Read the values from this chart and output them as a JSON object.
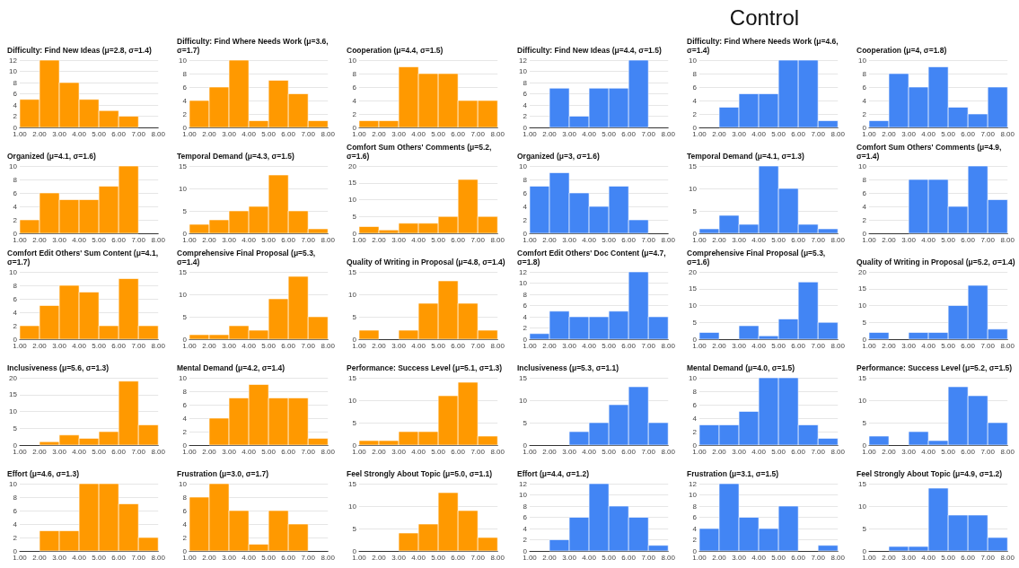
{
  "chart_data": [
    {
      "type": "histogram",
      "title": "Difficulty: Find New Ideas (μ=2.8, σ=1.4)",
      "bins": [
        1,
        2,
        3,
        4,
        5,
        6,
        7,
        8
      ],
      "values": [
        5,
        12,
        8,
        5,
        3,
        2,
        0
      ],
      "color": "#ff9900",
      "xlim": [
        1,
        8
      ],
      "xticks": [
        {
          "value": 1,
          "label": "1.00"
        },
        {
          "value": 2,
          "label": "2.00"
        },
        {
          "value": 3,
          "label": "3.00"
        },
        {
          "value": 4,
          "label": "4.00"
        },
        {
          "value": 5,
          "label": "5.00"
        },
        {
          "value": 6,
          "label": "6.00"
        },
        {
          "value": 7,
          "label": "7.00"
        },
        {
          "value": 8,
          "label": "8.00"
        }
      ],
      "ylim": [
        0,
        12
      ],
      "yticks": [
        0,
        2,
        4,
        6,
        8,
        10,
        12
      ],
      "grid": "y"
    },
    {
      "type": "histogram",
      "title": "Difficulty: Find Where Needs Work  (μ=3.6, σ=1.7)",
      "bins": [
        1,
        2,
        3,
        4,
        5,
        6,
        7,
        8
      ],
      "values": [
        4,
        6,
        10,
        1,
        7,
        5,
        1
      ],
      "color": "#ff9900",
      "xlim": [
        1,
        8
      ],
      "xticks": [
        {
          "value": 1,
          "label": "1.00"
        },
        {
          "value": 2,
          "label": "2.00"
        },
        {
          "value": 3,
          "label": "3.00"
        },
        {
          "value": 4,
          "label": "4.00"
        },
        {
          "value": 5,
          "label": "5.00"
        },
        {
          "value": 6,
          "label": "6.00"
        },
        {
          "value": 7,
          "label": "7.00"
        },
        {
          "value": 8,
          "label": "8.00"
        }
      ],
      "ylim": [
        0,
        10
      ],
      "yticks": [
        0,
        2,
        4,
        6,
        8,
        10
      ],
      "grid": "y"
    },
    {
      "type": "histogram",
      "title": "Cooperation (μ=4.4, σ=1.5)",
      "bins": [
        1,
        2,
        3,
        4,
        5,
        6,
        7,
        8
      ],
      "values": [
        1,
        1,
        9,
        8,
        8,
        4,
        4
      ],
      "color": "#ff9900",
      "xlim": [
        1,
        8
      ],
      "xticks": [
        {
          "value": 1,
          "label": "1.00"
        },
        {
          "value": 2,
          "label": "2.00"
        },
        {
          "value": 3,
          "label": "3.00"
        },
        {
          "value": 4,
          "label": "4.00"
        },
        {
          "value": 5,
          "label": "5.00"
        },
        {
          "value": 6,
          "label": "6.00"
        },
        {
          "value": 7,
          "label": "7.00"
        },
        {
          "value": 8,
          "label": "8.00"
        }
      ],
      "ylim": [
        0,
        10
      ],
      "yticks": [
        0,
        2,
        4,
        6,
        8,
        10
      ],
      "grid": "y"
    },
    {
      "type": "histogram",
      "title": "Organized  (μ=4.1, σ=1.6)",
      "bins": [
        1,
        2,
        3,
        4,
        5,
        6,
        7,
        8
      ],
      "values": [
        2,
        6,
        5,
        5,
        7,
        10,
        0
      ],
      "color": "#ff9900",
      "xlim": [
        1,
        8
      ],
      "xticks": [
        {
          "value": 1,
          "label": "1.00"
        },
        {
          "value": 2,
          "label": "2.00"
        },
        {
          "value": 3,
          "label": "3.00"
        },
        {
          "value": 4,
          "label": "4.00"
        },
        {
          "value": 5,
          "label": "5.00"
        },
        {
          "value": 6,
          "label": "6.00"
        },
        {
          "value": 7,
          "label": "7.00"
        },
        {
          "value": 8,
          "label": "8.00"
        }
      ],
      "ylim": [
        0,
        10
      ],
      "yticks": [
        0,
        2,
        4,
        6,
        8,
        10
      ],
      "grid": "y"
    },
    {
      "type": "histogram",
      "title": "Temporal Demand (μ=4.3, σ=1.5)",
      "bins": [
        1,
        2,
        3,
        4,
        5,
        6,
        7,
        8
      ],
      "values": [
        2,
        3,
        5,
        6,
        13,
        5,
        1
      ],
      "color": "#ff9900",
      "xlim": [
        1,
        8
      ],
      "xticks": [
        {
          "value": 1,
          "label": "1.00"
        },
        {
          "value": 2,
          "label": "2.00"
        },
        {
          "value": 3,
          "label": "3.00"
        },
        {
          "value": 4,
          "label": "4.00"
        },
        {
          "value": 5,
          "label": "5.00"
        },
        {
          "value": 6,
          "label": "6.00"
        },
        {
          "value": 7,
          "label": "7.00"
        },
        {
          "value": 8,
          "label": "8.00"
        }
      ],
      "ylim": [
        0,
        15
      ],
      "yticks": [
        0,
        5,
        10,
        15
      ],
      "grid": "y"
    },
    {
      "type": "histogram",
      "title": "Comfort Sum Others' Comments (μ=5.2, σ=1.6)",
      "bins": [
        1,
        2,
        3,
        4,
        5,
        6,
        7,
        8
      ],
      "values": [
        2,
        1,
        3,
        3,
        5,
        16,
        5
      ],
      "color": "#ff9900",
      "xlim": [
        1,
        8
      ],
      "xticks": [
        {
          "value": 1,
          "label": "1.00"
        },
        {
          "value": 2,
          "label": "2.00"
        },
        {
          "value": 3,
          "label": "3.00"
        },
        {
          "value": 4,
          "label": "4.00"
        },
        {
          "value": 5,
          "label": "5.00"
        },
        {
          "value": 6,
          "label": "6.00"
        },
        {
          "value": 7,
          "label": "7.00"
        },
        {
          "value": 8,
          "label": "8.00"
        }
      ],
      "ylim": [
        0,
        20
      ],
      "yticks": [
        0,
        5,
        10,
        15,
        20
      ],
      "grid": "y"
    },
    {
      "type": "histogram",
      "title": "Comfort Edit Others' Sum Content (μ=4.1, σ=1.7)",
      "bins": [
        1,
        2,
        3,
        4,
        5,
        6,
        7,
        8
      ],
      "values": [
        2,
        5,
        8,
        7,
        2,
        9,
        2
      ],
      "color": "#ff9900",
      "xlim": [
        1,
        8
      ],
      "xticks": [
        {
          "value": 1,
          "label": "1.00"
        },
        {
          "value": 2,
          "label": "2.00"
        },
        {
          "value": 3,
          "label": "3.00"
        },
        {
          "value": 4,
          "label": "4.00"
        },
        {
          "value": 5,
          "label": "5.00"
        },
        {
          "value": 6,
          "label": "6.00"
        },
        {
          "value": 7,
          "label": "7.00"
        },
        {
          "value": 8,
          "label": "8.00"
        }
      ],
      "ylim": [
        0,
        10
      ],
      "yticks": [
        0,
        2,
        4,
        6,
        8,
        10
      ],
      "grid": "y"
    },
    {
      "type": "histogram",
      "title": "Comprehensive Final Proposal (μ=5.3, σ=1.4)",
      "bins": [
        1,
        2,
        3,
        4,
        5,
        6,
        7,
        8
      ],
      "values": [
        1,
        1,
        3,
        2,
        9,
        14,
        5
      ],
      "color": "#ff9900",
      "xlim": [
        1,
        8
      ],
      "xticks": [
        {
          "value": 1,
          "label": "1.00"
        },
        {
          "value": 2,
          "label": "2.00"
        },
        {
          "value": 3,
          "label": "3.00"
        },
        {
          "value": 4,
          "label": "4.00"
        },
        {
          "value": 5,
          "label": "5.00"
        },
        {
          "value": 6,
          "label": "6.00"
        },
        {
          "value": 7,
          "label": "7.00"
        },
        {
          "value": 8,
          "label": "8.00"
        }
      ],
      "ylim": [
        0,
        15
      ],
      "yticks": [
        0,
        5,
        10,
        15
      ],
      "grid": "y"
    },
    {
      "type": "histogram",
      "title": "Quality of Writing in Proposal (μ=4.8, σ=1.4)",
      "bins": [
        1,
        2,
        3,
        4,
        5,
        6,
        7,
        8
      ],
      "values": [
        2,
        0,
        2,
        8,
        13,
        8,
        2
      ],
      "color": "#ff9900",
      "xlim": [
        1,
        8
      ],
      "xticks": [
        {
          "value": 1,
          "label": "1.00"
        },
        {
          "value": 2,
          "label": "2.00"
        },
        {
          "value": 3,
          "label": "3.00"
        },
        {
          "value": 4,
          "label": "4.00"
        },
        {
          "value": 5,
          "label": "5.00"
        },
        {
          "value": 6,
          "label": "6.00"
        },
        {
          "value": 7,
          "label": "7.00"
        },
        {
          "value": 8,
          "label": "8.00"
        }
      ],
      "ylim": [
        0,
        15
      ],
      "yticks": [
        0,
        5,
        10,
        15
      ],
      "grid": "y"
    },
    {
      "type": "histogram",
      "title": "Inclusiveness (μ=5.6, σ=1.3)",
      "bins": [
        1,
        2,
        3,
        4,
        5,
        6,
        7,
        8
      ],
      "values": [
        0,
        1,
        3,
        2,
        4,
        19,
        6
      ],
      "color": "#ff9900",
      "xlim": [
        1,
        8
      ],
      "xticks": [
        {
          "value": 1,
          "label": "1.00"
        },
        {
          "value": 2,
          "label": "2.00"
        },
        {
          "value": 3,
          "label": "3.00"
        },
        {
          "value": 4,
          "label": "4.00"
        },
        {
          "value": 5,
          "label": "5.00"
        },
        {
          "value": 6,
          "label": "6.00"
        },
        {
          "value": 7,
          "label": "7.00"
        },
        {
          "value": 8,
          "label": "8.00"
        }
      ],
      "ylim": [
        0,
        20
      ],
      "yticks": [
        0,
        5,
        10,
        15,
        20
      ],
      "grid": "y"
    },
    {
      "type": "histogram",
      "title": "Mental Demand (μ=4.2, σ=1.4)",
      "bins": [
        1,
        2,
        3,
        4,
        5,
        6,
        7,
        8
      ],
      "values": [
        0,
        4,
        7,
        9,
        7,
        7,
        1
      ],
      "color": "#ff9900",
      "xlim": [
        1,
        8
      ],
      "xticks": [
        {
          "value": 1,
          "label": "1.00"
        },
        {
          "value": 2,
          "label": "2.00"
        },
        {
          "value": 3,
          "label": "3.00"
        },
        {
          "value": 4,
          "label": "4.00"
        },
        {
          "value": 5,
          "label": "5.00"
        },
        {
          "value": 6,
          "label": "6.00"
        },
        {
          "value": 7,
          "label": "7.00"
        },
        {
          "value": 8,
          "label": "8.00"
        }
      ],
      "ylim": [
        0,
        10
      ],
      "yticks": [
        0,
        2,
        4,
        6,
        8,
        10
      ],
      "grid": "y"
    },
    {
      "type": "histogram",
      "title": "Performance: Success Level (μ=5.1, σ=1.3)",
      "bins": [
        1,
        2,
        3,
        4,
        5,
        6,
        7,
        8
      ],
      "values": [
        1,
        1,
        3,
        3,
        11,
        14,
        2
      ],
      "color": "#ff9900",
      "xlim": [
        1,
        8
      ],
      "xticks": [
        {
          "value": 1,
          "label": "1.00"
        },
        {
          "value": 2,
          "label": "2.00"
        },
        {
          "value": 3,
          "label": "3.00"
        },
        {
          "value": 4,
          "label": "4.00"
        },
        {
          "value": 5,
          "label": "5.00"
        },
        {
          "value": 6,
          "label": "6.00"
        },
        {
          "value": 7,
          "label": "7.00"
        },
        {
          "value": 8,
          "label": "8.00"
        }
      ],
      "ylim": [
        0,
        15
      ],
      "yticks": [
        0,
        5,
        10,
        15
      ],
      "grid": "y"
    },
    {
      "type": "histogram",
      "title": "Effort (μ=4.6, σ=1.3)",
      "bins": [
        1,
        2,
        3,
        4,
        5,
        6,
        7,
        8
      ],
      "values": [
        0,
        3,
        3,
        10,
        10,
        7,
        2
      ],
      "color": "#ff9900",
      "xlim": [
        1,
        8
      ],
      "xticks": [
        {
          "value": 1,
          "label": "1.00"
        },
        {
          "value": 2,
          "label": "2.00"
        },
        {
          "value": 3,
          "label": "3.00"
        },
        {
          "value": 4,
          "label": "4.00"
        },
        {
          "value": 5,
          "label": "5.00"
        },
        {
          "value": 6,
          "label": "6.00"
        },
        {
          "value": 7,
          "label": "7.00"
        },
        {
          "value": 8,
          "label": "8.00"
        }
      ],
      "ylim": [
        0,
        10
      ],
      "yticks": [
        0,
        2,
        4,
        6,
        8,
        10
      ],
      "grid": "y"
    },
    {
      "type": "histogram",
      "title": "Frustration (μ=3.0, σ=1.7)",
      "bins": [
        1,
        2,
        3,
        4,
        5,
        6,
        7,
        8
      ],
      "values": [
        8,
        10,
        6,
        1,
        6,
        4,
        0
      ],
      "color": "#ff9900",
      "xlim": [
        1,
        8
      ],
      "xticks": [
        {
          "value": 1,
          "label": "1.00"
        },
        {
          "value": 2,
          "label": "2.00"
        },
        {
          "value": 3,
          "label": "3.00"
        },
        {
          "value": 4,
          "label": "4.00"
        },
        {
          "value": 5,
          "label": "5.00"
        },
        {
          "value": 6,
          "label": "6.00"
        },
        {
          "value": 7,
          "label": "7.00"
        },
        {
          "value": 8,
          "label": "8.00"
        }
      ],
      "ylim": [
        0,
        10
      ],
      "yticks": [
        0,
        2,
        4,
        6,
        8,
        10
      ],
      "grid": "y"
    },
    {
      "type": "histogram",
      "title": "Feel Strongly About Topic (μ=5.0, σ=1.1)",
      "bins": [
        1,
        2,
        3,
        4,
        5,
        6,
        7,
        8
      ],
      "values": [
        0,
        0,
        4,
        6,
        13,
        9,
        3
      ],
      "color": "#ff9900",
      "xlim": [
        1,
        8
      ],
      "xticks": [
        {
          "value": 1,
          "label": "1.00"
        },
        {
          "value": 2,
          "label": "2.00"
        },
        {
          "value": 3,
          "label": "3.00"
        },
        {
          "value": 4,
          "label": "4.00"
        },
        {
          "value": 5,
          "label": "5.00"
        },
        {
          "value": 6,
          "label": "6.00"
        },
        {
          "value": 7,
          "label": "7.00"
        },
        {
          "value": 8,
          "label": "8.00"
        }
      ],
      "ylim": [
        0,
        15
      ],
      "yticks": [
        0,
        5,
        10,
        15
      ],
      "grid": "y"
    },
    {
      "type": "histogram",
      "title": "Difficulty: Find New Ideas (μ=4.4, σ=1.5)",
      "annotations": [
        "Control"
      ],
      "bins": [
        1,
        2,
        3,
        4,
        5,
        6,
        7,
        8
      ],
      "values": [
        0,
        7,
        2,
        7,
        7,
        12,
        0
      ],
      "color": "#4285f4",
      "xlim": [
        1,
        8
      ],
      "xticks": [
        {
          "value": 1,
          "label": "1.00"
        },
        {
          "value": 2,
          "label": "2.00"
        },
        {
          "value": 3,
          "label": "3.00"
        },
        {
          "value": 4,
          "label": "4.00"
        },
        {
          "value": 5,
          "label": "5.00"
        },
        {
          "value": 6,
          "label": "6.00"
        },
        {
          "value": 7,
          "label": "7.00"
        },
        {
          "value": 8,
          "label": "8.00"
        }
      ],
      "ylim": [
        0,
        12
      ],
      "yticks": [
        0,
        2,
        4,
        6,
        8,
        10,
        12
      ],
      "grid": "y"
    },
    {
      "type": "histogram",
      "title": "Difficulty: Find Where Needs Work (μ=4.6, σ=1.4)",
      "bins": [
        1,
        2,
        3,
        4,
        5,
        6,
        7,
        8
      ],
      "values": [
        0,
        3,
        5,
        5,
        10,
        10,
        1
      ],
      "color": "#4285f4",
      "xlim": [
        1,
        8
      ],
      "xticks": [
        {
          "value": 1,
          "label": "1.00"
        },
        {
          "value": 2,
          "label": "2.00"
        },
        {
          "value": 3,
          "label": "3.00"
        },
        {
          "value": 4,
          "label": "4.00"
        },
        {
          "value": 5,
          "label": "5.00"
        },
        {
          "value": 6,
          "label": "6.00"
        },
        {
          "value": 7,
          "label": "7.00"
        },
        {
          "value": 8,
          "label": "8.00"
        }
      ],
      "ylim": [
        0,
        10
      ],
      "yticks": [
        0,
        2,
        4,
        6,
        8,
        10
      ],
      "grid": "y"
    },
    {
      "type": "histogram",
      "title": "Cooperation (μ=4, σ=1.8)",
      "bins": [
        1,
        2,
        3,
        4,
        5,
        6,
        7,
        8
      ],
      "values": [
        1,
        8,
        6,
        9,
        3,
        2,
        6
      ],
      "color": "#4285f4",
      "xlim": [
        1,
        8
      ],
      "xticks": [
        {
          "value": 1,
          "label": "1.00"
        },
        {
          "value": 2,
          "label": "2.00"
        },
        {
          "value": 3,
          "label": "3.00"
        },
        {
          "value": 4,
          "label": "4.00"
        },
        {
          "value": 5,
          "label": "5.00"
        },
        {
          "value": 6,
          "label": "6.00"
        },
        {
          "value": 7,
          "label": "7.00"
        },
        {
          "value": 8,
          "label": "8.00"
        }
      ],
      "ylim": [
        0,
        10
      ],
      "yticks": [
        0,
        2,
        4,
        6,
        8,
        10
      ],
      "grid": "y"
    },
    {
      "type": "histogram",
      "title": "Organized  (μ=3, σ=1.6)",
      "bins": [
        1,
        2,
        3,
        4,
        5,
        6,
        7,
        8
      ],
      "values": [
        7,
        9,
        6,
        4,
        7,
        2,
        0
      ],
      "color": "#4285f4",
      "xlim": [
        1,
        8
      ],
      "xticks": [
        {
          "value": 1,
          "label": "1.00"
        },
        {
          "value": 2,
          "label": "2.00"
        },
        {
          "value": 3,
          "label": "3.00"
        },
        {
          "value": 4,
          "label": "4.00"
        },
        {
          "value": 5,
          "label": "5.00"
        },
        {
          "value": 6,
          "label": "6.00"
        },
        {
          "value": 7,
          "label": "7.00"
        },
        {
          "value": 8,
          "label": "8.00"
        }
      ],
      "ylim": [
        0,
        10
      ],
      "yticks": [
        0,
        2,
        4,
        6,
        8,
        10
      ],
      "grid": "y"
    },
    {
      "type": "histogram",
      "title": "Temporal Demand (μ=4.1, σ=1.3)",
      "bins": [
        1,
        2,
        3,
        4,
        5,
        6,
        7,
        8
      ],
      "values": [
        1,
        4,
        2,
        15,
        10,
        2,
        1
      ],
      "color": "#4285f4",
      "xlim": [
        1,
        8
      ],
      "xticks": [
        {
          "value": 1,
          "label": "1.00"
        },
        {
          "value": 2,
          "label": "2.00"
        },
        {
          "value": 3,
          "label": "3.00"
        },
        {
          "value": 4,
          "label": "4.00"
        },
        {
          "value": 5,
          "label": "5.00"
        },
        {
          "value": 6,
          "label": "6.00"
        },
        {
          "value": 7,
          "label": "7.00"
        },
        {
          "value": 8,
          "label": "8.00"
        }
      ],
      "ylim": [
        0,
        15
      ],
      "yticks": [
        0,
        5,
        10,
        15
      ],
      "grid": "y"
    },
    {
      "type": "histogram",
      "title": "Comfort Sum Others' Comments (μ=4.9, σ=1.4)",
      "bins": [
        1,
        2,
        3,
        4,
        5,
        6,
        7,
        8
      ],
      "values": [
        0,
        0,
        8,
        8,
        4,
        10,
        5
      ],
      "color": "#4285f4",
      "xlim": [
        1,
        8
      ],
      "xticks": [
        {
          "value": 1,
          "label": "1.00"
        },
        {
          "value": 2,
          "label": "2.00"
        },
        {
          "value": 3,
          "label": "3.00"
        },
        {
          "value": 4,
          "label": "4.00"
        },
        {
          "value": 5,
          "label": "5.00"
        },
        {
          "value": 6,
          "label": "6.00"
        },
        {
          "value": 7,
          "label": "7.00"
        },
        {
          "value": 8,
          "label": "8.00"
        }
      ],
      "ylim": [
        0,
        10
      ],
      "yticks": [
        0,
        2,
        4,
        6,
        8,
        10
      ],
      "grid": "y"
    },
    {
      "type": "histogram",
      "title": "Comfort Edit Others' Doc Content (μ=4.7, σ=1.8)",
      "bins": [
        1,
        2,
        3,
        4,
        5,
        6,
        7,
        8
      ],
      "values": [
        1,
        5,
        4,
        4,
        5,
        12,
        4
      ],
      "color": "#4285f4",
      "xlim": [
        1,
        8
      ],
      "xticks": [
        {
          "value": 1,
          "label": "1.00"
        },
        {
          "value": 2,
          "label": "2.00"
        },
        {
          "value": 3,
          "label": "3.00"
        },
        {
          "value": 4,
          "label": "4.00"
        },
        {
          "value": 5,
          "label": "5.00"
        },
        {
          "value": 6,
          "label": "6.00"
        },
        {
          "value": 7,
          "label": "7.00"
        },
        {
          "value": 8,
          "label": "8.00"
        }
      ],
      "ylim": [
        0,
        12
      ],
      "yticks": [
        0,
        2,
        4,
        6,
        8,
        10,
        12
      ],
      "grid": "y"
    },
    {
      "type": "histogram",
      "title": "Comprehensive Final Proposal (μ=5.3, σ=1.6)",
      "bins": [
        1,
        2,
        3,
        4,
        5,
        6,
        7,
        8
      ],
      "values": [
        2,
        0,
        4,
        1,
        6,
        17,
        5
      ],
      "color": "#4285f4",
      "xlim": [
        1,
        8
      ],
      "xticks": [
        {
          "value": 1,
          "label": "1.00"
        },
        {
          "value": 2,
          "label": "2.00"
        },
        {
          "value": 3,
          "label": "3.00"
        },
        {
          "value": 4,
          "label": "4.00"
        },
        {
          "value": 5,
          "label": "5.00"
        },
        {
          "value": 6,
          "label": "6.00"
        },
        {
          "value": 7,
          "label": "7.00"
        },
        {
          "value": 8,
          "label": "8.00"
        }
      ],
      "ylim": [
        0,
        20
      ],
      "yticks": [
        0,
        5,
        10,
        15,
        20
      ],
      "grid": "y"
    },
    {
      "type": "histogram",
      "title": "Quality of Writing in Proposal (μ=5.2, σ=1.4)",
      "bins": [
        1,
        2,
        3,
        4,
        5,
        6,
        7,
        8
      ],
      "values": [
        2,
        0,
        2,
        2,
        10,
        16,
        3
      ],
      "color": "#4285f4",
      "xlim": [
        1,
        8
      ],
      "xticks": [
        {
          "value": 1,
          "label": "1.00"
        },
        {
          "value": 2,
          "label": "2.00"
        },
        {
          "value": 3,
          "label": "3.00"
        },
        {
          "value": 4,
          "label": "4.00"
        },
        {
          "value": 5,
          "label": "5.00"
        },
        {
          "value": 6,
          "label": "6.00"
        },
        {
          "value": 7,
          "label": "7.00"
        },
        {
          "value": 8,
          "label": "8.00"
        }
      ],
      "ylim": [
        0,
        20
      ],
      "yticks": [
        0,
        5,
        10,
        15,
        20
      ],
      "grid": "y"
    },
    {
      "type": "histogram",
      "title": "Inclusiveness (μ=5.3, σ=1.1)",
      "bins": [
        1,
        2,
        3,
        4,
        5,
        6,
        7,
        8
      ],
      "values": [
        0,
        0,
        3,
        5,
        9,
        13,
        5
      ],
      "color": "#4285f4",
      "xlim": [
        1,
        8
      ],
      "xticks": [
        {
          "value": 1,
          "label": "1.00"
        },
        {
          "value": 2,
          "label": "2.00"
        },
        {
          "value": 3,
          "label": "3.00"
        },
        {
          "value": 4,
          "label": "4.00"
        },
        {
          "value": 5,
          "label": "5.00"
        },
        {
          "value": 6,
          "label": "6.00"
        },
        {
          "value": 7,
          "label": "7.00"
        },
        {
          "value": 8,
          "label": "8.00"
        }
      ],
      "ylim": [
        0,
        15
      ],
      "yticks": [
        0,
        5,
        10,
        15
      ],
      "grid": "y"
    },
    {
      "type": "histogram",
      "title": "Mental Demand (μ=4.0, σ=1.5)",
      "bins": [
        1,
        2,
        3,
        4,
        5,
        6,
        7,
        8
      ],
      "values": [
        3,
        3,
        5,
        10,
        10,
        3,
        1
      ],
      "color": "#4285f4",
      "xlim": [
        1,
        8
      ],
      "xticks": [
        {
          "value": 1,
          "label": "1.00"
        },
        {
          "value": 2,
          "label": "2.00"
        },
        {
          "value": 3,
          "label": "3.00"
        },
        {
          "value": 4,
          "label": "4.00"
        },
        {
          "value": 5,
          "label": "5.00"
        },
        {
          "value": 6,
          "label": "6.00"
        },
        {
          "value": 7,
          "label": "7.00"
        },
        {
          "value": 8,
          "label": "8.00"
        }
      ],
      "ylim": [
        0,
        10
      ],
      "yticks": [
        0,
        2,
        4,
        6,
        8,
        10
      ],
      "grid": "y"
    },
    {
      "type": "histogram",
      "title": "Performance: Success Level (μ=5.2, σ=1.5)",
      "bins": [
        1,
        2,
        3,
        4,
        5,
        6,
        7,
        8
      ],
      "values": [
        2,
        0,
        3,
        1,
        13,
        11,
        5
      ],
      "color": "#4285f4",
      "xlim": [
        1,
        8
      ],
      "xticks": [
        {
          "value": 1,
          "label": "1.00"
        },
        {
          "value": 2,
          "label": "2.00"
        },
        {
          "value": 3,
          "label": "3.00"
        },
        {
          "value": 4,
          "label": "4.00"
        },
        {
          "value": 5,
          "label": "5.00"
        },
        {
          "value": 6,
          "label": "6.00"
        },
        {
          "value": 7,
          "label": "7.00"
        },
        {
          "value": 8,
          "label": "8.00"
        }
      ],
      "ylim": [
        0,
        15
      ],
      "yticks": [
        0,
        5,
        10,
        15
      ],
      "grid": "y"
    },
    {
      "type": "histogram",
      "title": "Effort (μ=4.4, σ=1.2)",
      "bins": [
        1,
        2,
        3,
        4,
        5,
        6,
        7,
        8
      ],
      "values": [
        0,
        2,
        6,
        12,
        8,
        6,
        1
      ],
      "color": "#4285f4",
      "xlim": [
        1,
        8
      ],
      "xticks": [
        {
          "value": 1,
          "label": "1.00"
        },
        {
          "value": 2,
          "label": "2.00"
        },
        {
          "value": 3,
          "label": "3.00"
        },
        {
          "value": 4,
          "label": "4.00"
        },
        {
          "value": 5,
          "label": "5.00"
        },
        {
          "value": 6,
          "label": "6.00"
        },
        {
          "value": 7,
          "label": "7.00"
        },
        {
          "value": 8,
          "label": "8.00"
        }
      ],
      "ylim": [
        0,
        12
      ],
      "yticks": [
        0,
        2,
        4,
        6,
        8,
        10,
        12
      ],
      "grid": "y"
    },
    {
      "type": "histogram",
      "title": "Frustration (μ=3.1, σ=1.5)",
      "bins": [
        1,
        2,
        3,
        4,
        5,
        6,
        7,
        8
      ],
      "values": [
        4,
        12,
        6,
        4,
        8,
        0,
        1
      ],
      "color": "#4285f4",
      "xlim": [
        1,
        8
      ],
      "xticks": [
        {
          "value": 1,
          "label": "1.00"
        },
        {
          "value": 2,
          "label": "2.00"
        },
        {
          "value": 3,
          "label": "3.00"
        },
        {
          "value": 4,
          "label": "4.00"
        },
        {
          "value": 5,
          "label": "5.00"
        },
        {
          "value": 6,
          "label": "6.00"
        },
        {
          "value": 7,
          "label": "7.00"
        },
        {
          "value": 8,
          "label": "8.00"
        }
      ],
      "ylim": [
        0,
        12
      ],
      "yticks": [
        0,
        2,
        4,
        6,
        8,
        10,
        12
      ],
      "grid": "y"
    },
    {
      "type": "histogram",
      "title": "Feel Strongly About Topic (μ=4.9, σ=1.2)",
      "bins": [
        1,
        2,
        3,
        4,
        5,
        6,
        7,
        8
      ],
      "values": [
        0,
        1,
        1,
        14,
        8,
        8,
        3
      ],
      "color": "#4285f4",
      "xlim": [
        1,
        8
      ],
      "xticks": [
        {
          "value": 1,
          "label": "1.00"
        },
        {
          "value": 2,
          "label": "2.00"
        },
        {
          "value": 3,
          "label": "3.00"
        },
        {
          "value": 4,
          "label": "4.00"
        },
        {
          "value": 5,
          "label": "5.00"
        },
        {
          "value": 6,
          "label": "6.00"
        },
        {
          "value": 7,
          "label": "7.00"
        },
        {
          "value": 8,
          "label": "8.00"
        }
      ],
      "ylim": [
        0,
        15
      ],
      "yticks": [
        0,
        5,
        10,
        15
      ],
      "grid": "y"
    }
  ]
}
